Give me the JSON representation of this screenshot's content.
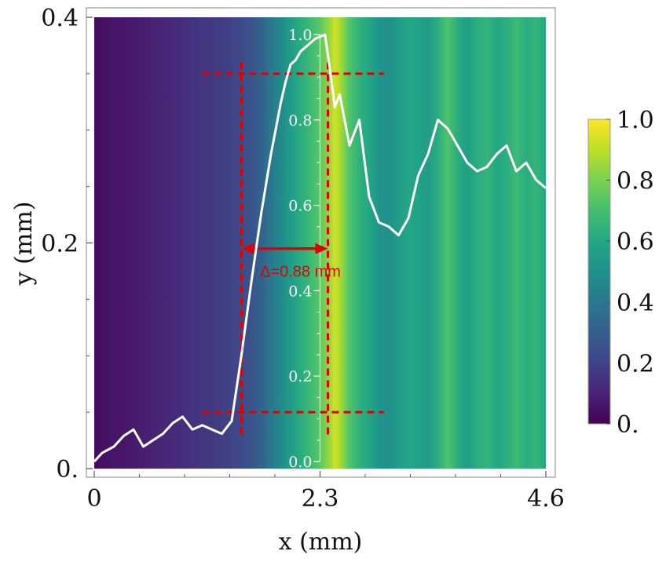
{
  "chart_data": {
    "type": "heatmap",
    "xlabel": "x (mm)",
    "ylabel": "y (mm)",
    "xlim": [
      0,
      4.6
    ],
    "ylim": [
      0,
      0.4
    ],
    "x_ticks": [
      0,
      2.3,
      4.6
    ],
    "x_tick_labels": [
      "0",
      "2.3",
      "4.6"
    ],
    "y_ticks": [
      0,
      0.2,
      0.4
    ],
    "y_tick_labels": [
      "0.",
      "0.2",
      "0.4"
    ],
    "colormap": "viridis",
    "colorbar": {
      "range": [
        0,
        1
      ],
      "ticks": [
        0,
        0.2,
        0.4,
        0.6,
        0.8,
        1.0
      ],
      "tick_labels": [
        "0.",
        "0.2",
        "0.4",
        "0.6",
        "0.8",
        "1.0"
      ],
      "placement": "right"
    },
    "heatmap_columns": {
      "x": [
        0,
        0.2,
        0.4,
        0.6,
        0.8,
        1.0,
        1.2,
        1.4,
        1.6,
        1.7,
        1.8,
        1.9,
        2.0,
        2.1,
        2.2,
        2.3,
        2.4,
        2.45,
        2.5,
        2.55,
        2.6,
        2.7,
        2.8,
        2.9,
        3.0,
        3.1,
        3.2,
        3.3,
        3.4,
        3.5,
        3.6,
        3.7,
        3.8,
        3.9,
        4.0,
        4.1,
        4.2,
        4.3,
        4.4,
        4.5,
        4.6
      ],
      "value": [
        0.03,
        0.06,
        0.07,
        0.1,
        0.12,
        0.15,
        0.17,
        0.2,
        0.26,
        0.32,
        0.4,
        0.48,
        0.55,
        0.62,
        0.68,
        0.74,
        0.85,
        0.93,
        0.88,
        0.8,
        0.72,
        0.64,
        0.6,
        0.52,
        0.5,
        0.55,
        0.6,
        0.58,
        0.55,
        0.62,
        0.72,
        0.62,
        0.56,
        0.62,
        0.66,
        0.6,
        0.63,
        0.68,
        0.62,
        0.66,
        0.6
      ]
    },
    "inset_profile": {
      "axis_ticks": [
        0.0,
        0.2,
        0.4,
        0.6,
        0.8,
        1.0
      ],
      "axis_tick_labels": [
        "0.0",
        "0.2",
        "0.4",
        "0.6",
        "0.8",
        "1.0"
      ],
      "axis_x": 2.3,
      "x": [
        0,
        0.08,
        0.2,
        0.3,
        0.4,
        0.5,
        0.6,
        0.7,
        0.8,
        0.9,
        1.0,
        1.1,
        1.2,
        1.3,
        1.4,
        1.5,
        1.6,
        1.7,
        1.75,
        1.8,
        1.85,
        1.9,
        1.95,
        2.0,
        2.05,
        2.1,
        2.15,
        2.2,
        2.25,
        2.3,
        2.35,
        2.4,
        2.45,
        2.5,
        2.6,
        2.7,
        2.8,
        2.9,
        3.0,
        3.1,
        3.2,
        3.3,
        3.4,
        3.5,
        3.6,
        3.7,
        3.8,
        3.9,
        4.0,
        4.1,
        4.2,
        4.3,
        4.4,
        4.5,
        4.6
      ],
      "y": [
        0.0,
        0.02,
        0.035,
        0.06,
        0.075,
        0.035,
        0.05,
        0.065,
        0.09,
        0.105,
        0.075,
        0.085,
        0.075,
        0.065,
        0.095,
        0.25,
        0.42,
        0.58,
        0.65,
        0.72,
        0.78,
        0.84,
        0.89,
        0.93,
        0.94,
        0.96,
        0.97,
        0.98,
        0.99,
        0.995,
        1.0,
        0.92,
        0.83,
        0.86,
        0.74,
        0.8,
        0.62,
        0.56,
        0.55,
        0.53,
        0.57,
        0.67,
        0.72,
        0.8,
        0.78,
        0.74,
        0.7,
        0.68,
        0.69,
        0.72,
        0.74,
        0.68,
        0.7,
        0.66,
        0.64
      ]
    },
    "annotations": {
      "label": "Δ=0.88 mm",
      "arrow_x_range": [
        1.5,
        2.38
      ],
      "arrow_y": 0.195,
      "vertical_dashed_x": [
        1.5,
        2.38
      ],
      "horizontal_dashed_y": [
        0.35,
        0.05
      ],
      "horizontal_dashed_x_range": [
        1.1,
        2.95
      ]
    },
    "colors": {
      "profile_line": "#ffffff",
      "annotation": "#e00000"
    }
  }
}
